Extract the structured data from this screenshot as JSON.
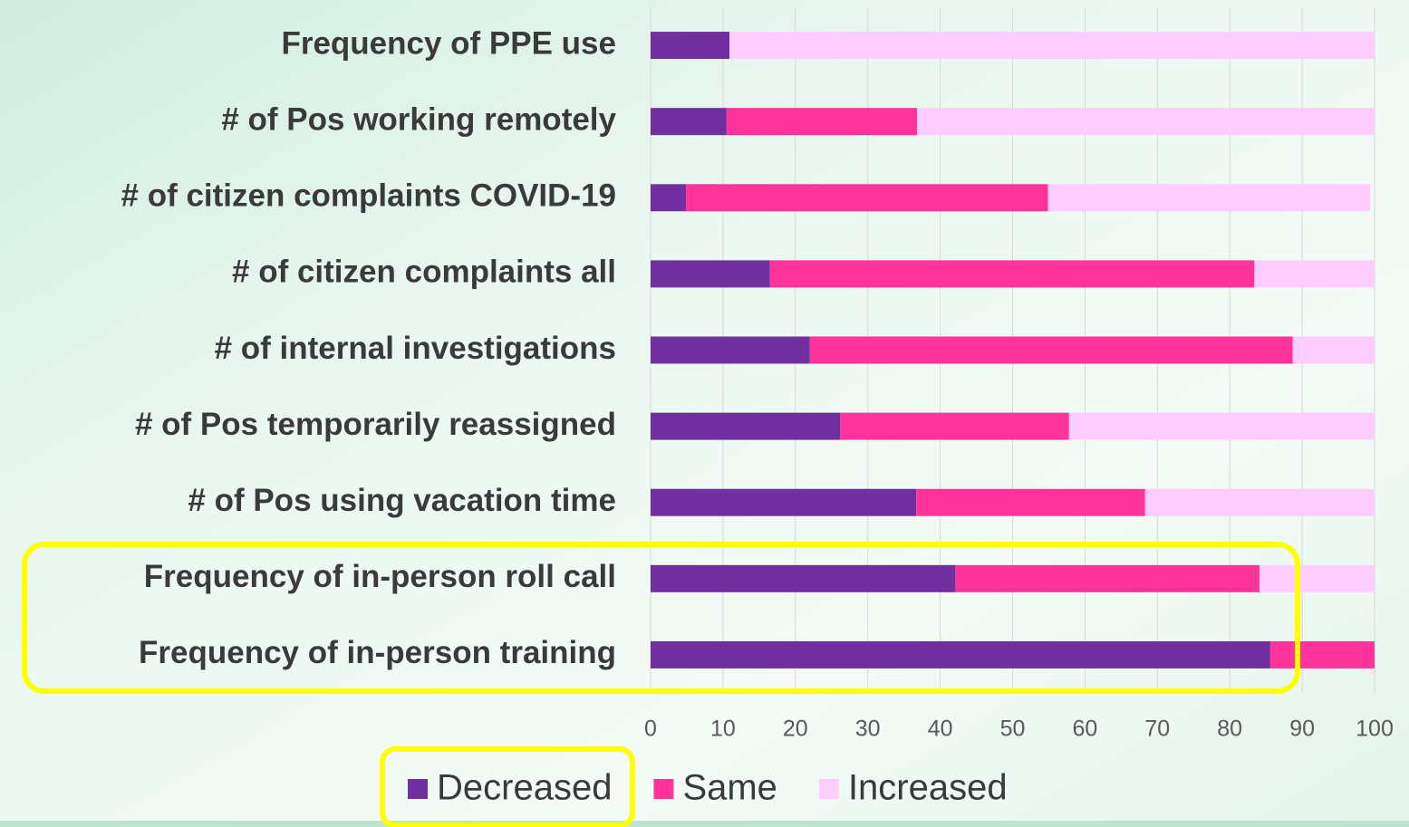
{
  "chart_data": {
    "type": "stacked_barh",
    "categories": [
      "Frequency of PPE use",
      "# of Pos working remotely",
      "# of citizen complaints COVID-19",
      "# of citizen complaints all",
      "# of internal investigations",
      "# of Pos temporarily reassigned",
      "# of Pos using vacation time",
      "Frequency of in-person roll call",
      "Frequency of in-person training"
    ],
    "series": [
      {
        "name": "Decreased",
        "color": "#7030a0",
        "values": [
          10.9,
          10.5,
          4.9,
          16.5,
          22.0,
          26.2,
          36.7,
          42.1,
          85.6
        ]
      },
      {
        "name": "Same",
        "color": "#ff3399",
        "values": [
          0,
          26.3,
          50.0,
          66.9,
          66.7,
          31.6,
          31.6,
          42.0,
          14.4
        ]
      },
      {
        "name": "Increased",
        "color": "#ffccff",
        "values": [
          89.1,
          63.2,
          44.5,
          16.6,
          11.3,
          42.2,
          31.7,
          15.9,
          0
        ]
      }
    ],
    "xlim": [
      0,
      100
    ],
    "xticks": [
      0,
      10,
      20,
      30,
      40,
      50,
      60,
      70,
      80,
      90,
      100
    ],
    "grid": true
  }
}
